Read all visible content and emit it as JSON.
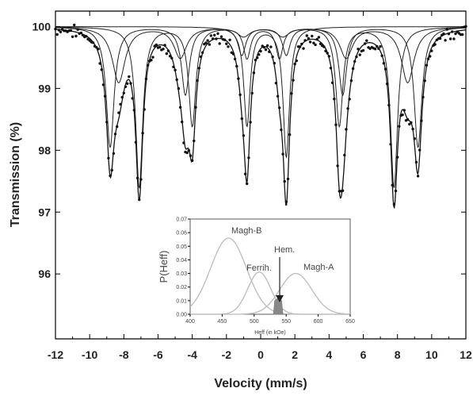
{
  "chart_data": [
    {
      "type": "scatter",
      "xlabel": "Velocity (mm/s)",
      "ylabel": "Transmission (%)",
      "xlim": [
        -12,
        12
      ],
      "ylim": [
        94.95,
        100.25
      ],
      "x_ticks": [
        "-12",
        "-10",
        "-8",
        "-6",
        "-4",
        "-2",
        "0",
        "2",
        "4",
        "6",
        "8",
        "10",
        "12"
      ],
      "y_ticks": [
        "100",
        "99",
        "98",
        "97",
        "96"
      ],
      "grid": false,
      "sextets": [
        {
          "lines": [
            -8.8,
            -4.4,
            -1.1,
            1.5,
            4.8,
            9.2
          ],
          "depths": [
            1.95,
            1.1,
            0.45,
            0.45,
            1.1,
            1.95
          ],
          "width": 0.55
        },
        {
          "lines": [
            -7.1,
            -4.0,
            -0.8,
            1.1,
            4.6,
            7.8
          ],
          "depths": [
            2.6,
            1.6,
            0.5,
            0.5,
            1.6,
            2.6
          ],
          "width": 0.5
        },
        {
          "lines": [
            -8.3,
            -4.7,
            -1.0,
            1.3,
            5.0,
            8.6
          ],
          "depths": [
            0.9,
            0.5,
            0.15,
            0.15,
            0.5,
            0.9
          ],
          "width": 0.9
        }
      ],
      "doublets": [
        {
          "lines": [
            -0.8,
            1.5
          ],
          "depths": [
            1.6,
            2.1
          ],
          "width": 0.45
        }
      ],
      "noise_amplitude": 0.08
    },
    {
      "type": "area",
      "inset": true,
      "xlabel": "Heff (in kOe)",
      "ylabel": "P(Heff)",
      "xlim": [
        400,
        650
      ],
      "ylim": [
        0.0,
        0.07
      ],
      "x_ticks": [
        "400",
        "450",
        "500",
        "550",
        "600",
        "650"
      ],
      "y_ticks": [
        "0.00",
        "0.01",
        "0.02",
        "0.03",
        "0.04",
        "0.05",
        "0.06",
        "0.07"
      ],
      "components": [
        {
          "name": "Magh-B",
          "center": 460,
          "sigma": 28,
          "peak": 0.056
        },
        {
          "name": "Ferrih.",
          "center": 508,
          "sigma": 18,
          "peak": 0.031
        },
        {
          "name": "Magh-A",
          "center": 565,
          "sigma": 25,
          "peak": 0.03
        }
      ],
      "hematite": {
        "name": "Hem.",
        "from": 530,
        "to": 545,
        "peak": 0.012
      },
      "annotations": [
        "Magh-B",
        "Ferrih.",
        "Hem.",
        "Magh-A"
      ]
    }
  ]
}
